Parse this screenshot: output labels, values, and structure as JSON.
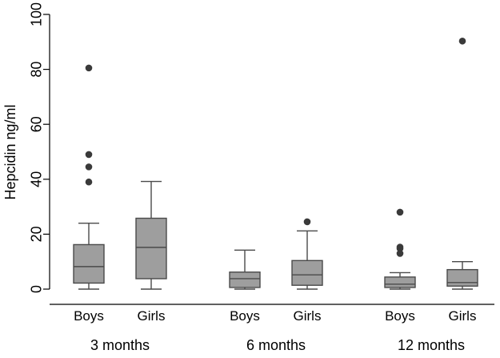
{
  "chart_data": {
    "type": "box",
    "ylabel": "Hepcidin ng/ml",
    "xlabel": "",
    "title": "",
    "ylim": [
      0,
      100
    ],
    "yticks": [
      0,
      20,
      40,
      60,
      80,
      100
    ],
    "grid": false,
    "colors": {
      "box_fill": "#9e9e9e",
      "stroke": "#4a4a4a",
      "outlier": "#3a3a3a",
      "axis": "#000000"
    },
    "groups": [
      {
        "label": "3 months",
        "boxes": [
          {
            "category": "Boys",
            "q1": 2.2,
            "median": 8.2,
            "q3": 16.2,
            "whisker_low": 0,
            "whisker_high": 24,
            "outliers": [
              39,
              44.5,
              49,
              80.5
            ]
          },
          {
            "category": "Girls",
            "q1": 3.8,
            "median": 15.2,
            "q3": 25.8,
            "whisker_low": 0,
            "whisker_high": 39.2,
            "outliers": []
          }
        ]
      },
      {
        "label": "6 months",
        "boxes": [
          {
            "category": "Boys",
            "q1": 0.6,
            "median": 3.8,
            "q3": 6.2,
            "whisker_low": 0,
            "whisker_high": 14.2,
            "outliers": []
          },
          {
            "category": "Girls",
            "q1": 1.4,
            "median": 5.2,
            "q3": 10.4,
            "whisker_low": 0,
            "whisker_high": 21.2,
            "outliers": [
              24.5
            ]
          }
        ]
      },
      {
        "label": "12 months",
        "boxes": [
          {
            "category": "Boys",
            "q1": 0.6,
            "median": 1.8,
            "q3": 4.4,
            "whisker_low": 0,
            "whisker_high": 6,
            "outliers": [
              13,
              14.8,
              15.3,
              28
            ]
          },
          {
            "category": "Girls",
            "q1": 1.1,
            "median": 2.4,
            "q3": 7.1,
            "whisker_low": 0,
            "whisker_high": 10,
            "outliers": [
              90.3
            ]
          }
        ]
      }
    ]
  }
}
